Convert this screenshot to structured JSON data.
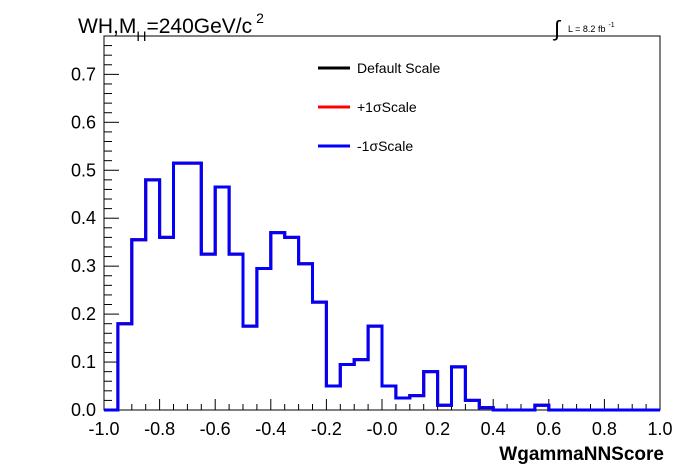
{
  "chart_data": {
    "type": "line",
    "title": {
      "prefix": "WH,M",
      "sub": "H",
      "mid": "=240GeV/c",
      "sup": "2"
    },
    "luminosity": {
      "symbol": "∫",
      "text": "L = 8.2 fb",
      "sup": "-1"
    },
    "xlabel": "WgammaNNScore",
    "ylabel": "",
    "xlim": [
      -1.0,
      1.0
    ],
    "ylim": [
      0.0,
      0.78
    ],
    "x_ticks": [
      {
        "value": -1.0,
        "label": "-1.0"
      },
      {
        "value": -0.8,
        "label": "-0.8"
      },
      {
        "value": -0.6,
        "label": "-0.6"
      },
      {
        "value": -0.4,
        "label": "-0.4"
      },
      {
        "value": -0.2,
        "label": "-0.2"
      },
      {
        "value": 0.0,
        "label": "-0.0"
      },
      {
        "value": 0.2,
        "label": "0.2"
      },
      {
        "value": 0.4,
        "label": "0.4"
      },
      {
        "value": 0.6,
        "label": "0.6"
      },
      {
        "value": 0.8,
        "label": "0.8"
      },
      {
        "value": 1.0,
        "label": "1.0"
      }
    ],
    "y_ticks": [
      {
        "value": 0.0,
        "label": "0.0"
      },
      {
        "value": 0.1,
        "label": "0.1"
      },
      {
        "value": 0.2,
        "label": "0.2"
      },
      {
        "value": 0.3,
        "label": "0.3"
      },
      {
        "value": 0.4,
        "label": "0.4"
      },
      {
        "value": 0.5,
        "label": "0.5"
      },
      {
        "value": 0.6,
        "label": "0.6"
      },
      {
        "value": 0.7,
        "label": "0.7"
      }
    ],
    "bin_edges_start": -1.0,
    "bin_width": 0.05,
    "grid": false,
    "legend_position": "top-center",
    "series": [
      {
        "name": "Default Scale",
        "color": "#000000",
        "values": [
          0.0,
          0.18,
          0.355,
          0.48,
          0.36,
          0.515,
          0.515,
          0.325,
          0.465,
          0.325,
          0.175,
          0.295,
          0.37,
          0.36,
          0.305,
          0.225,
          0.05,
          0.095,
          0.105,
          0.175,
          0.05,
          0.025,
          0.03,
          0.08,
          0.01,
          0.09,
          0.02,
          0.005,
          0.0,
          0.0,
          0.0,
          0.01,
          0.0,
          0.0,
          0.0,
          0.0,
          0.0,
          0.0,
          0.0,
          0.0
        ]
      },
      {
        "name": "+1σScale",
        "color": "#ff0000",
        "values": [
          0.0,
          0.18,
          0.355,
          0.48,
          0.36,
          0.515,
          0.515,
          0.325,
          0.465,
          0.325,
          0.175,
          0.295,
          0.37,
          0.36,
          0.305,
          0.225,
          0.05,
          0.095,
          0.105,
          0.175,
          0.05,
          0.025,
          0.03,
          0.08,
          0.01,
          0.09,
          0.02,
          0.005,
          0.0,
          0.0,
          0.0,
          0.01,
          0.0,
          0.0,
          0.0,
          0.0,
          0.0,
          0.0,
          0.0,
          0.0
        ]
      },
      {
        "name": "-1σScale",
        "color": "#0000ff",
        "values": [
          0.0,
          0.18,
          0.355,
          0.48,
          0.36,
          0.515,
          0.515,
          0.325,
          0.465,
          0.325,
          0.175,
          0.295,
          0.37,
          0.36,
          0.305,
          0.225,
          0.05,
          0.095,
          0.105,
          0.175,
          0.05,
          0.025,
          0.03,
          0.08,
          0.01,
          0.09,
          0.02,
          0.005,
          0.0,
          0.0,
          0.0,
          0.01,
          0.0,
          0.0,
          0.0,
          0.0,
          0.0,
          0.0,
          0.0,
          0.0
        ]
      }
    ]
  }
}
